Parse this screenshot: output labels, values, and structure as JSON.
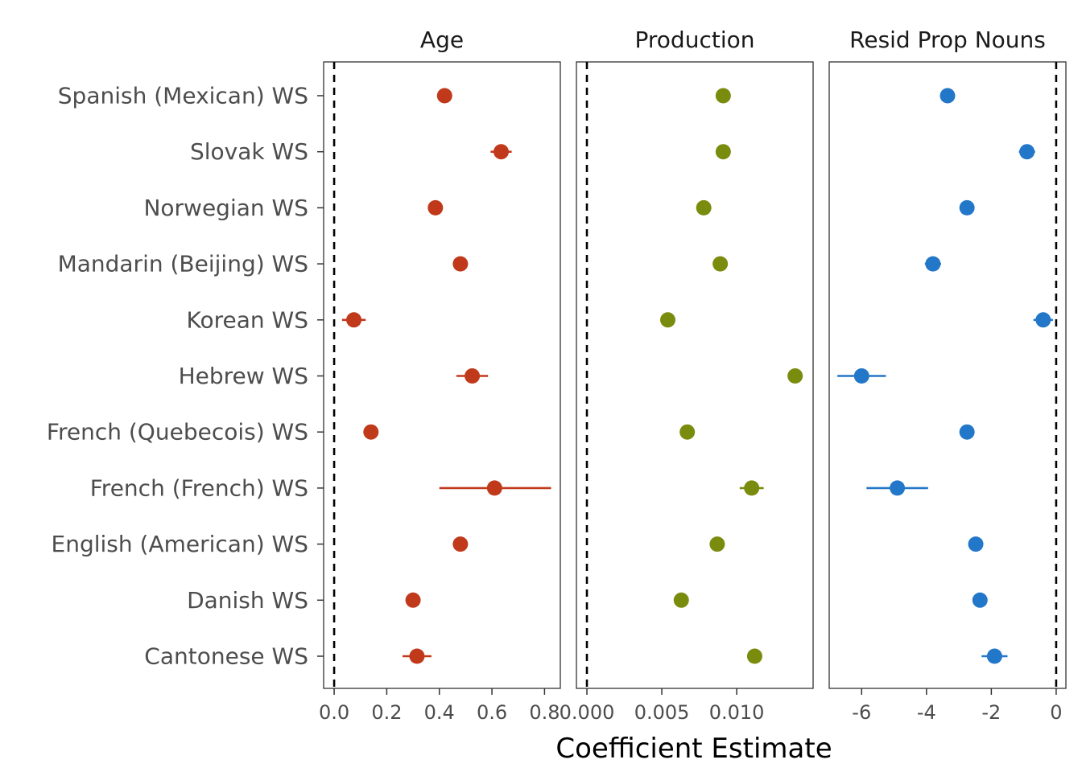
{
  "chart_data": {
    "type": "scatter",
    "subtype": "coefficient-dot-plot-with-error-bars",
    "xlabel": "Coefficient Estimate",
    "ylabel": "",
    "grid": false,
    "legend": "none",
    "reference_line": 0,
    "categories": [
      "Spanish (Mexican) WS",
      "Slovak WS",
      "Norwegian WS",
      "Mandarin (Beijing) WS",
      "Korean WS",
      "Hebrew WS",
      "French (Quebecois) WS",
      "French (French) WS",
      "English (American) WS",
      "Danish WS",
      "Cantonese WS"
    ],
    "facets": [
      {
        "title": "Age",
        "color": "#c0391b",
        "xlim": [
          -0.04,
          0.86
        ],
        "ticks": [
          0.0,
          0.2,
          0.4,
          0.6,
          0.8
        ],
        "tick_labels": [
          "0.0",
          "0.2",
          "0.4",
          "0.6",
          "0.8"
        ],
        "estimates": [
          0.42,
          0.635,
          0.385,
          0.48,
          0.075,
          0.525,
          0.14,
          0.61,
          0.48,
          0.3,
          0.315
        ],
        "ci_low": [
          0.42,
          0.595,
          0.385,
          0.48,
          0.03,
          0.465,
          0.14,
          0.4,
          0.48,
          0.3,
          0.26
        ],
        "ci_high": [
          0.42,
          0.675,
          0.385,
          0.48,
          0.12,
          0.585,
          0.14,
          0.825,
          0.48,
          0.3,
          0.37
        ]
      },
      {
        "title": "Production",
        "color": "#7a8c0e",
        "xlim": [
          -0.0007,
          0.0151
        ],
        "ticks": [
          0.0,
          0.005,
          0.01
        ],
        "tick_labels": [
          "0.000",
          "0.005",
          "0.010"
        ],
        "estimates": [
          0.0091,
          0.0091,
          0.0078,
          0.0089,
          0.0054,
          0.0139,
          0.0067,
          0.011,
          0.0087,
          0.0063,
          0.0112
        ],
        "ci_low": [
          0.0091,
          0.0091,
          0.0078,
          0.0089,
          0.0054,
          0.0139,
          0.0067,
          0.0102,
          0.0087,
          0.0063,
          0.0112
        ],
        "ci_high": [
          0.0091,
          0.0091,
          0.0078,
          0.0089,
          0.0054,
          0.0139,
          0.0067,
          0.0118,
          0.0087,
          0.0063,
          0.0112
        ]
      },
      {
        "title": "Resid Prop Nouns",
        "color": "#2377c9",
        "xlim": [
          -7.0,
          0.3
        ],
        "ticks": [
          -6,
          -4,
          -2,
          0
        ],
        "tick_labels": [
          "-6",
          "-4",
          "-2",
          "0"
        ],
        "estimates": [
          -3.35,
          -0.9,
          -2.75,
          -3.8,
          -0.4,
          -6.0,
          -2.75,
          -4.9,
          -2.48,
          -2.35,
          -1.9
        ],
        "ci_low": [
          -3.35,
          -1.15,
          -2.75,
          -4.05,
          -0.7,
          -6.75,
          -2.75,
          -5.85,
          -2.48,
          -2.35,
          -2.3
        ],
        "ci_high": [
          -3.35,
          -0.65,
          -2.75,
          -3.55,
          -0.1,
          -5.25,
          -2.75,
          -3.95,
          -2.48,
          -2.35,
          -1.5
        ]
      }
    ]
  }
}
